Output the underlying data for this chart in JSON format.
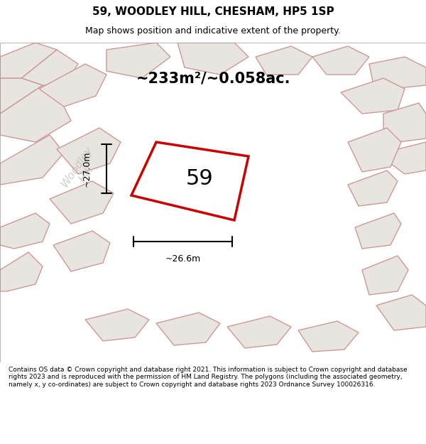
{
  "title": "59, WOODLEY HILL, CHESHAM, HP5 1SP",
  "subtitle": "Map shows position and indicative extent of the property.",
  "area_text": "~233m²/~0.058ac.",
  "plot_number": "59",
  "dim_vertical": "~27.0m",
  "dim_horizontal": "~26.6m",
  "footer": "Contains OS data © Crown copyright and database right 2021. This information is subject to Crown copyright and database rights 2023 and is reproduced with the permission of HM Land Registry. The polygons (including the associated geometry, namely x, y co-ordinates) are subject to Crown copyright and database rights 2023 Ordnance Survey 100026316.",
  "bg_color": "#f0ede8",
  "map_bg": "#f0ede8",
  "plot_fill": "#ffffff",
  "plot_edge_color": "#cc0000",
  "neighbor_fill": "#e8e4df",
  "neighbor_edge": "#cc9999",
  "watermark_color": "#cccccc",
  "footer_bg": "#ffffff"
}
